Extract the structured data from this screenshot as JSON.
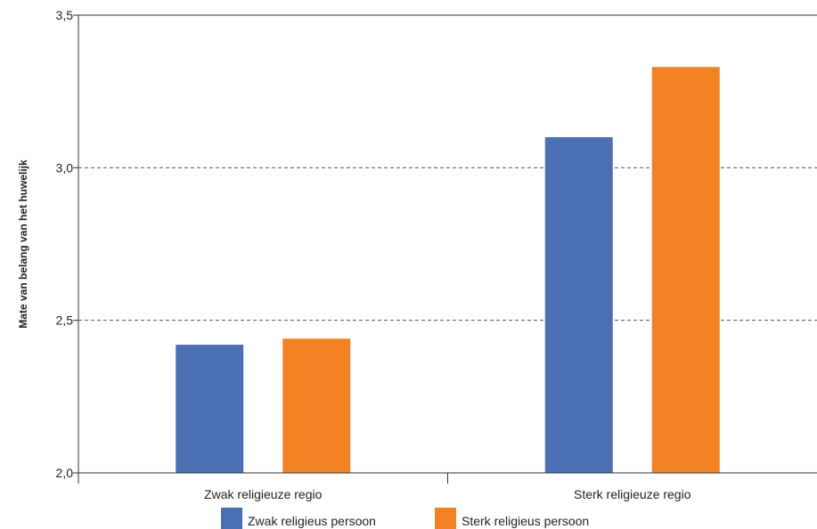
{
  "chart_data": {
    "type": "bar",
    "categories": [
      "Zwak religieuze regio",
      "Sterk religieuze regio"
    ],
    "series": [
      {
        "name": "Zwak religieus persoon",
        "values": [
          2.42,
          3.1
        ],
        "color": "#4a6fb5"
      },
      {
        "name": "Sterk religieus persoon",
        "values": [
          2.44,
          3.33
        ],
        "color": "#f08224"
      }
    ],
    "ylabel": "Mate van belang van het huwelijk",
    "xlabel": "",
    "ylim": [
      2.0,
      3.5
    ],
    "yticks": [
      "2,0",
      "2,5",
      "3,0",
      "3,5"
    ],
    "ytick_values": [
      2.0,
      2.5,
      3.0,
      3.5
    ],
    "grid": "dashed horizontal at 2,5 and 3,0",
    "legend_placement": "bottom"
  }
}
